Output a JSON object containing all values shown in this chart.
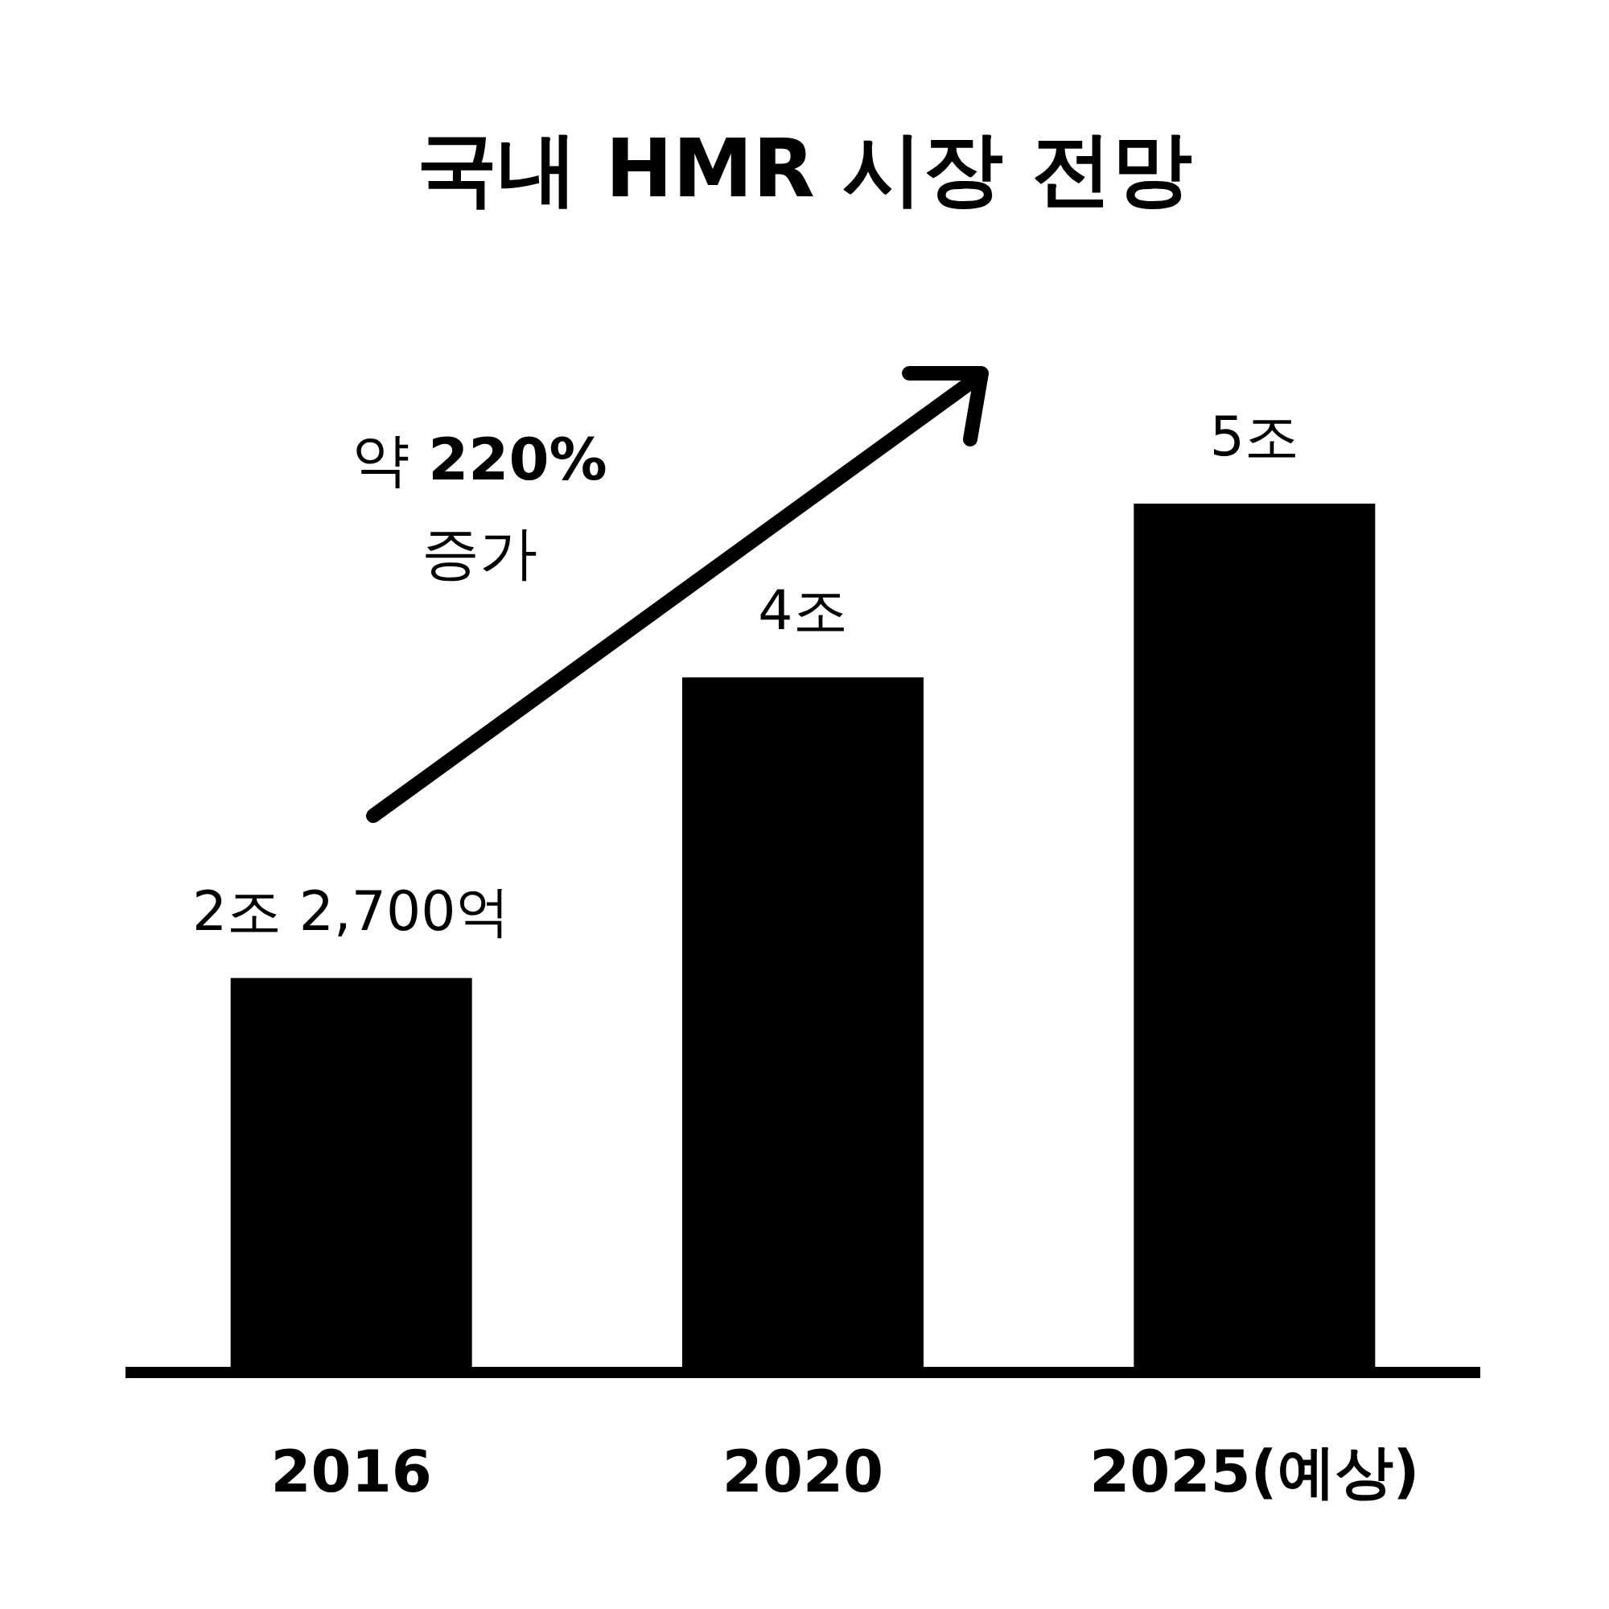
{
  "chart_data": {
    "type": "bar",
    "title": "국내 HMR 시장 전망",
    "categories": [
      "2016",
      "2020",
      "2025(예상)"
    ],
    "values": [
      2.27,
      4,
      5
    ],
    "value_labels": [
      "2조 2,700억",
      "4조",
      "5조"
    ],
    "color": "#000000",
    "annotations": [
      "약 **220%** 증가"
    ]
  }
}
